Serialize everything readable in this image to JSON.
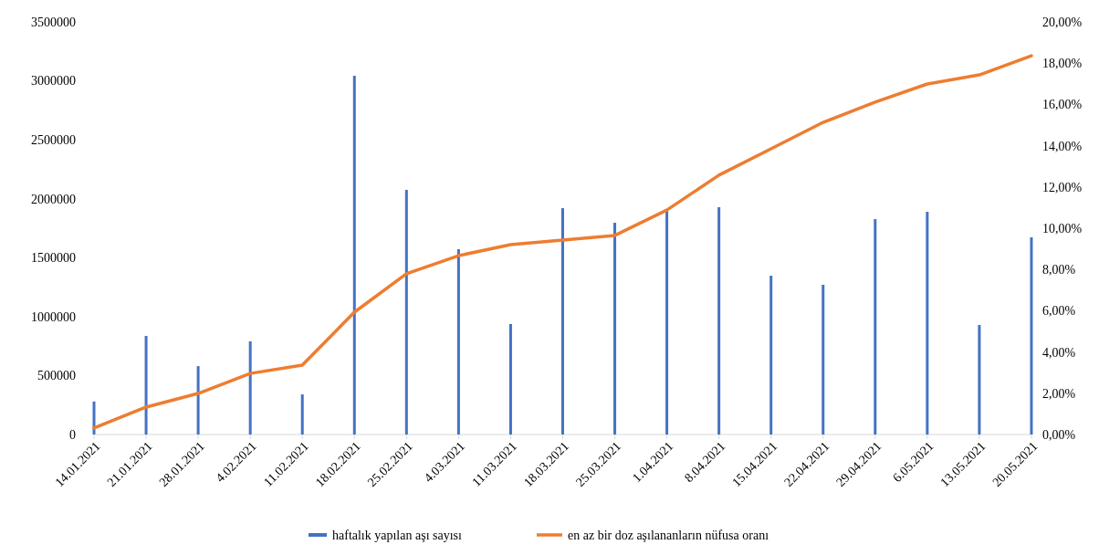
{
  "chart_data": {
    "type": "bar",
    "categories": [
      "14.01.2021",
      "21.01.2021",
      "28.01.2021",
      "4.02.2021",
      "11.02.2021",
      "18.02.2021",
      "25.02.2021",
      "4.03.2021",
      "11.03.2021",
      "18.03.2021",
      "25.03.2021",
      "1.04.2021",
      "8.04.2021",
      "15.04.2021",
      "22.04.2021",
      "29.04.2021",
      "6.05.2021",
      "13.05.2021",
      "20.05.2021"
    ],
    "series": [
      {
        "name": "haftalık yapılan aşı sayısı",
        "color": "#4472c4",
        "values": [
          280000,
          836000,
          580000,
          790000,
          340000,
          3043000,
          2075000,
          1572000,
          937000,
          1920000,
          1796000,
          1905000,
          1928000,
          1347000,
          1270000,
          1827000,
          1889000,
          929000,
          1673000
        ]
      },
      {
        "name": "en az bir doz aşılananların nüfusa oranı",
        "type": "line",
        "axis": "y2",
        "color": "#ed7d31",
        "values": [
          0.31,
          1.33,
          1.99,
          2.96,
          3.36,
          5.93,
          7.79,
          8.67,
          9.2,
          9.42,
          9.65,
          10.88,
          12.57,
          13.85,
          15.13,
          16.11,
          16.99,
          17.43,
          18.36
        ]
      }
    ],
    "ylim": [
      0,
      3500000
    ],
    "yticks": [
      0,
      500000,
      1000000,
      1500000,
      2000000,
      2500000,
      3000000,
      3500000
    ],
    "y2lim": [
      0,
      20
    ],
    "y2ticks": [
      {
        "value": 0,
        "label": "0,00%"
      },
      {
        "value": 2,
        "label": "2,00%"
      },
      {
        "value": 4,
        "label": "4,00%"
      },
      {
        "value": 6,
        "label": "6,00%"
      },
      {
        "value": 8,
        "label": "8,00%"
      },
      {
        "value": 10,
        "label": "10,00%"
      },
      {
        "value": 12,
        "label": "12,00%"
      },
      {
        "value": 14,
        "label": "14,00%"
      },
      {
        "value": 16,
        "label": "16,00%"
      },
      {
        "value": 18,
        "label": "18,00%"
      },
      {
        "value": 20,
        "label": "20,00%"
      }
    ],
    "legend": "bottom",
    "marker": "none",
    "line_style": "solid"
  }
}
